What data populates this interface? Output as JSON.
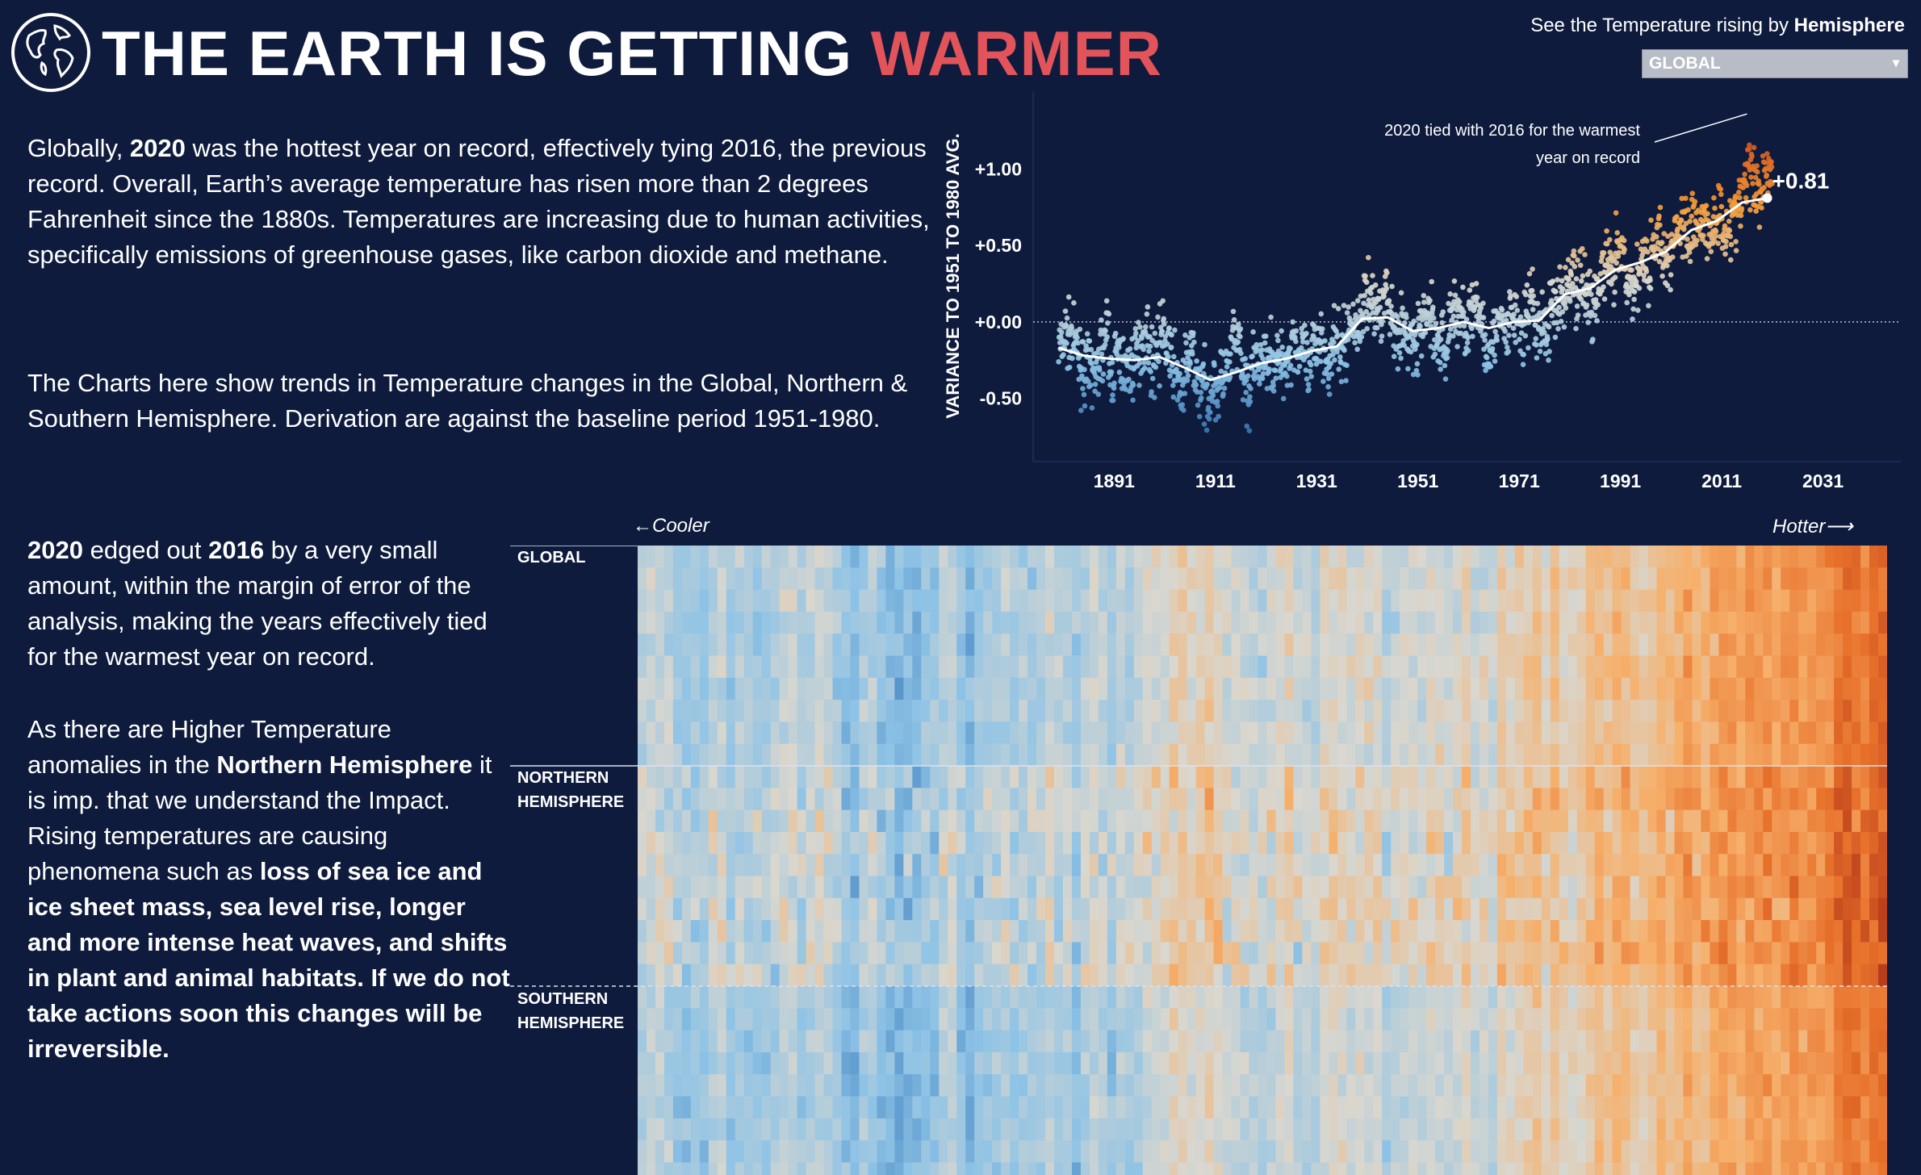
{
  "header": {
    "title_main": "THE EARTH IS GETTING",
    "title_accent": "WARMER",
    "accent_color": "#e2545a",
    "background": "#0e1b3d",
    "globe_icon": "globe-icon"
  },
  "text": {
    "p1_a": "Globally, ",
    "p1_b": "2020",
    "p1_c": " was the hottest year on record, effectively tying 2016, the previous record. Overall, Earth’s average temperature has risen more than 2 degrees Fahrenheit since the 1880s. Temperatures are increasing due to human activities, specifically emissions of greenhouse gases, like carbon dioxide and methane.",
    "p2": "The Charts here show trends in Temperature changes in the Global, Northern & Southern Hemisphere. Derivation are against the baseline period  1951-1980.",
    "p3_a": "2020",
    "p3_b": " edged out ",
    "p3_c": "2016",
    "p3_d": " by a very small amount, within the margin of error of the analysis, making the years effectively tied for the warmest year on record.",
    "p4_a": "As there are Higher Temperature anomalies in the ",
    "p4_b": "Northern Hemisphere",
    "p4_c": " it is imp. that we understand the Impact. Rising temperatures are causing phenomena such as ",
    "p4_d": "loss of sea ice and ice sheet mass, sea level rise, longer and more intense heat waves, and shifts in plant and animal habitats. If we do not take actions soon this changes will be irreversible."
  },
  "filter": {
    "label_a": "See the Temperature rising by ",
    "label_b": "Hemisphere",
    "selected": "GLOBAL",
    "arrow": "▾"
  },
  "chart_data": [
    {
      "type": "scatter",
      "ylabel": "VARIANCE TO 1951 TO 1980 AVG.",
      "xlabel": "",
      "x_ticks": [
        "1891",
        "1911",
        "1931",
        "1951",
        "1971",
        "1991",
        "2011",
        "2031"
      ],
      "y_ticks": [
        "+1.00",
        "+0.50",
        "+0.00",
        "-0.50"
      ],
      "xlim": [
        1875,
        2040
      ],
      "ylim": [
        -0.85,
        1.45
      ],
      "baseline": 0,
      "annotation": "2020 tied with 2016 for the warmest year on record",
      "annotation_point": {
        "x": 2016,
        "y": 1.37
      },
      "end_label": "+0.81",
      "end_point": {
        "x": 2020,
        "y": 0.81
      },
      "point_color_scale": {
        "cold": "#2a68a8",
        "neutral": "#d8d8cf",
        "warm": "#f59a35",
        "hot": "#c7421c"
      },
      "trend_color": "#ffffff",
      "annual_trend": [
        [
          1880,
          -0.16
        ],
        [
          1881,
          -0.08
        ],
        [
          1882,
          -0.11
        ],
        [
          1883,
          -0.17
        ],
        [
          1884,
          -0.28
        ],
        [
          1885,
          -0.33
        ],
        [
          1886,
          -0.31
        ],
        [
          1887,
          -0.36
        ],
        [
          1888,
          -0.17
        ],
        [
          1889,
          -0.1
        ],
        [
          1890,
          -0.35
        ],
        [
          1891,
          -0.22
        ],
        [
          1892,
          -0.27
        ],
        [
          1893,
          -0.31
        ],
        [
          1894,
          -0.3
        ],
        [
          1895,
          -0.22
        ],
        [
          1896,
          -0.11
        ],
        [
          1897,
          -0.11
        ],
        [
          1898,
          -0.27
        ],
        [
          1899,
          -0.17
        ],
        [
          1900,
          -0.08
        ],
        [
          1901,
          -0.15
        ],
        [
          1902,
          -0.28
        ],
        [
          1903,
          -0.37
        ],
        [
          1904,
          -0.47
        ],
        [
          1905,
          -0.26
        ],
        [
          1906,
          -0.22
        ],
        [
          1907,
          -0.39
        ],
        [
          1908,
          -0.43
        ],
        [
          1909,
          -0.48
        ],
        [
          1910,
          -0.43
        ],
        [
          1911,
          -0.44
        ],
        [
          1912,
          -0.36
        ],
        [
          1913,
          -0.34
        ],
        [
          1914,
          -0.15
        ],
        [
          1915,
          -0.14
        ],
        [
          1916,
          -0.36
        ],
        [
          1917,
          -0.46
        ],
        [
          1918,
          -0.3
        ],
        [
          1919,
          -0.27
        ],
        [
          1920,
          -0.27
        ],
        [
          1921,
          -0.19
        ],
        [
          1922,
          -0.28
        ],
        [
          1923,
          -0.26
        ],
        [
          1924,
          -0.27
        ],
        [
          1925,
          -0.22
        ],
        [
          1926,
          -0.1
        ],
        [
          1927,
          -0.22
        ],
        [
          1928,
          -0.2
        ],
        [
          1929,
          -0.36
        ],
        [
          1930,
          -0.16
        ],
        [
          1931,
          -0.09
        ],
        [
          1932,
          -0.16
        ],
        [
          1933,
          -0.29
        ],
        [
          1934,
          -0.13
        ],
        [
          1935,
          -0.2
        ],
        [
          1936,
          -0.15
        ],
        [
          1937,
          -0.03
        ],
        [
          1938,
          -0.01
        ],
        [
          1939,
          -0.02
        ],
        [
          1940,
          0.13
        ],
        [
          1941,
          0.19
        ],
        [
          1942,
          0.07
        ],
        [
          1943,
          0.09
        ],
        [
          1944,
          0.2
        ],
        [
          1945,
          0.09
        ],
        [
          1946,
          -0.07
        ],
        [
          1947,
          -0.03
        ],
        [
          1948,
          -0.11
        ],
        [
          1949,
          -0.11
        ],
        [
          1950,
          -0.17
        ],
        [
          1951,
          -0.07
        ],
        [
          1952,
          0.01
        ],
        [
          1953,
          0.08
        ],
        [
          1954,
          -0.13
        ],
        [
          1955,
          -0.14
        ],
        [
          1956,
          -0.19
        ],
        [
          1957,
          0.05
        ],
        [
          1958,
          0.06
        ],
        [
          1959,
          0.03
        ],
        [
          1960,
          -0.03
        ],
        [
          1961,
          0.06
        ],
        [
          1962,
          0.03
        ],
        [
          1963,
          0.05
        ],
        [
          1964,
          -0.2
        ],
        [
          1965,
          -0.11
        ],
        [
          1966,
          -0.06
        ],
        [
          1967,
          -0.02
        ],
        [
          1968,
          -0.08
        ],
        [
          1969,
          0.05
        ],
        [
          1970,
          0.03
        ],
        [
          1971,
          -0.08
        ],
        [
          1972,
          0.01
        ],
        [
          1973,
          0.16
        ],
        [
          1974,
          -0.07
        ],
        [
          1975,
          -0.01
        ],
        [
          1976,
          -0.1
        ],
        [
          1977,
          0.18
        ],
        [
          1978,
          0.07
        ],
        [
          1979,
          0.16
        ],
        [
          1980,
          0.26
        ],
        [
          1981,
          0.32
        ],
        [
          1982,
          0.14
        ],
        [
          1983,
          0.31
        ],
        [
          1984,
          0.16
        ],
        [
          1985,
          0.12
        ],
        [
          1986,
          0.18
        ],
        [
          1987,
          0.32
        ],
        [
          1988,
          0.39
        ],
        [
          1989,
          0.27
        ],
        [
          1990,
          0.45
        ],
        [
          1991,
          0.4
        ],
        [
          1992,
          0.22
        ],
        [
          1993,
          0.23
        ],
        [
          1994,
          0.31
        ],
        [
          1995,
          0.45
        ],
        [
          1996,
          0.33
        ],
        [
          1997,
          0.46
        ],
        [
          1998,
          0.61
        ],
        [
          1999,
          0.38
        ],
        [
          2000,
          0.39
        ],
        [
          2001,
          0.54
        ],
        [
          2002,
          0.63
        ],
        [
          2003,
          0.62
        ],
        [
          2004,
          0.53
        ],
        [
          2005,
          0.68
        ],
        [
          2006,
          0.64
        ],
        [
          2007,
          0.66
        ],
        [
          2008,
          0.54
        ],
        [
          2009,
          0.65
        ],
        [
          2010,
          0.72
        ],
        [
          2011,
          0.61
        ],
        [
          2012,
          0.65
        ],
        [
          2013,
          0.68
        ],
        [
          2014,
          0.75
        ],
        [
          2015,
          0.9
        ],
        [
          2016,
          1.01
        ],
        [
          2017,
          0.92
        ],
        [
          2018,
          0.85
        ],
        [
          2019,
          0.98
        ],
        [
          2020,
          1.02
        ]
      ],
      "smoothed_trend": [
        [
          1880,
          -0.17
        ],
        [
          1885,
          -0.22
        ],
        [
          1890,
          -0.24
        ],
        [
          1895,
          -0.25
        ],
        [
          1900,
          -0.23
        ],
        [
          1905,
          -0.3
        ],
        [
          1910,
          -0.38
        ],
        [
          1915,
          -0.33
        ],
        [
          1920,
          -0.27
        ],
        [
          1925,
          -0.24
        ],
        [
          1930,
          -0.19
        ],
        [
          1935,
          -0.16
        ],
        [
          1940,
          0.02
        ],
        [
          1945,
          0.03
        ],
        [
          1950,
          -0.06
        ],
        [
          1955,
          -0.04
        ],
        [
          1960,
          0.0
        ],
        [
          1965,
          -0.04
        ],
        [
          1970,
          0.0
        ],
        [
          1975,
          0.01
        ],
        [
          1980,
          0.18
        ],
        [
          1985,
          0.22
        ],
        [
          1990,
          0.34
        ],
        [
          1995,
          0.39
        ],
        [
          2000,
          0.46
        ],
        [
          2005,
          0.6
        ],
        [
          2010,
          0.66
        ],
        [
          2015,
          0.78
        ],
        [
          2020,
          0.81
        ]
      ]
    },
    {
      "type": "heatmap",
      "axis_left": "←Cooler",
      "axis_right": "Hotter⟶",
      "rows": [
        "GLOBAL",
        "NORTHERN HEMISPHERE",
        "SOUTHERN HEMISPHERE"
      ],
      "x_range": [
        1880,
        2020
      ],
      "cells_per_year": 12,
      "color_scale": [
        "#2a6fb3",
        "#8ec3e6",
        "#d9d7cf",
        "#f6b06b",
        "#e8712b",
        "#b83d1a"
      ],
      "anomaly_range": [
        -0.9,
        1.4
      ]
    }
  ]
}
